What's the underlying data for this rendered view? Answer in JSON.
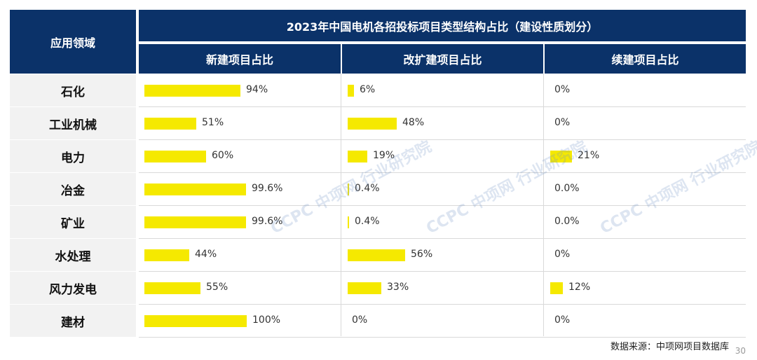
{
  "header": {
    "field_label": "应用领域",
    "title": "2023年中国电机各招投标项目类型结构占比（建设性质划分）",
    "columns": [
      "新建项目占比",
      "改扩建项目占比",
      "续建项目占比"
    ]
  },
  "chart_data": {
    "type": "table",
    "title": "2023年中国电机各招投标项目类型结构占比（建设性质划分）",
    "categories": [
      "石化",
      "工业机械",
      "电力",
      "冶金",
      "矿业",
      "水处理",
      "风力发电",
      "建材"
    ],
    "series": [
      {
        "name": "新建项目占比",
        "values": [
          94,
          51,
          60,
          99.6,
          99.6,
          44,
          55,
          100
        ],
        "labels": [
          "94%",
          "51%",
          "60%",
          "99.6%",
          "99.6%",
          "44%",
          "55%",
          "100%"
        ]
      },
      {
        "name": "改扩建项目占比",
        "values": [
          6,
          48,
          19,
          0.4,
          0.4,
          56,
          33,
          0
        ],
        "labels": [
          "6%",
          "48%",
          "19%",
          "0.4%",
          "0.4%",
          "56%",
          "33%",
          "0%"
        ]
      },
      {
        "name": "续建项目占比",
        "values": [
          0,
          0,
          21,
          0.0,
          0.0,
          0,
          12,
          0
        ],
        "labels": [
          "0%",
          "0%",
          "21%",
          "0.0%",
          "0.0%",
          "0%",
          "12%",
          "0%"
        ]
      }
    ],
    "bar_color": "#f5e900"
  },
  "colors": {
    "header_bg": "#0b3269",
    "header_text": "#ffffff",
    "label_bg": "#f2f2f2"
  },
  "footer": {
    "source": "数据来源：中项网项目数据库",
    "page_number": "30"
  },
  "watermark": {
    "brand": "CCPC",
    "name": "中项网",
    "sub": "行业研究院"
  }
}
